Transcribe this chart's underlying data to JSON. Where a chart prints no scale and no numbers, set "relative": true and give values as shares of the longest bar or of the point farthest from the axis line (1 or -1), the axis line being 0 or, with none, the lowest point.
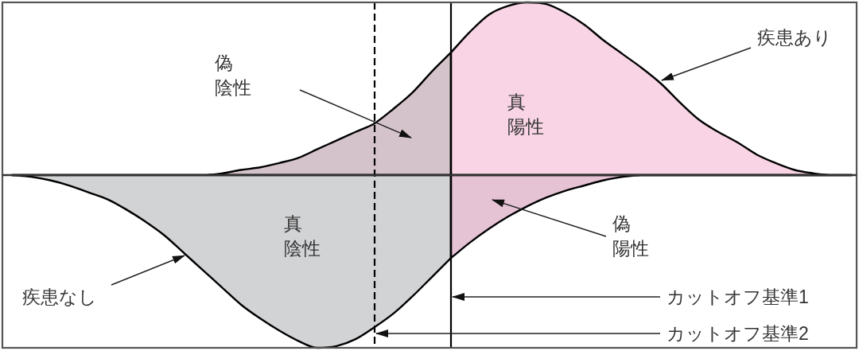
{
  "chart_data": {
    "type": "area",
    "relative": true,
    "categories": [
      null,
      null,
      null,
      null,
      null,
      null,
      null,
      null,
      null,
      null,
      null,
      null,
      null,
      null,
      null,
      null,
      null,
      null,
      null,
      null,
      null,
      null,
      null,
      null,
      null,
      null,
      null,
      null,
      null,
      null,
      null,
      null,
      null,
      null,
      null,
      null,
      null,
      null,
      null,
      null,
      null,
      null,
      null,
      null,
      null
    ],
    "series": [
      {
        "color": "#d5c3cb",
        "values": [
          0,
          0,
          0,
          0,
          0,
          0,
          0,
          0,
          0,
          0,
          0,
          0.01,
          0.03,
          0.045,
          0.07,
          0.1,
          0.15,
          0.2,
          0.25,
          0.3,
          0.385,
          0.48,
          0.6,
          0.71,
          null,
          null,
          null,
          null,
          null,
          null,
          null,
          null,
          null,
          null,
          null,
          null,
          null,
          null,
          null,
          null,
          null,
          null,
          null,
          null,
          null
        ]
      },
      {
        "color": "#f8d4e4",
        "values": [
          null,
          null,
          null,
          null,
          null,
          null,
          null,
          null,
          null,
          null,
          null,
          null,
          null,
          null,
          null,
          null,
          null,
          null,
          null,
          null,
          null,
          null,
          null,
          0.71,
          0.83,
          0.93,
          0.98,
          1,
          0.99,
          0.94,
          0.87,
          0.78,
          0.7,
          0.62,
          0.53,
          0.42,
          0.32,
          0.25,
          0.19,
          0.12,
          0.07,
          0.03,
          0.01,
          0,
          0
        ]
      },
      {
        "color": "#d2d3d5",
        "values": [
          0,
          -0.01,
          -0.03,
          -0.06,
          -0.1,
          -0.14,
          -0.2,
          -0.27,
          -0.35,
          -0.45,
          -0.55,
          -0.65,
          -0.75,
          -0.83,
          -0.9,
          -0.96,
          -1,
          -0.99,
          -0.95,
          -0.88,
          -0.8,
          -0.7,
          -0.59,
          -0.48,
          null,
          null,
          null,
          null,
          null,
          null,
          null,
          null,
          null,
          null,
          null,
          null,
          null,
          null,
          null,
          null,
          null,
          null,
          null,
          null,
          null
        ]
      },
      {
        "color": "#e6c2d5",
        "values": [
          null,
          null,
          null,
          null,
          null,
          null,
          null,
          null,
          null,
          null,
          null,
          null,
          null,
          null,
          null,
          null,
          null,
          null,
          null,
          null,
          null,
          null,
          null,
          -0.48,
          -0.39,
          -0.31,
          -0.24,
          -0.18,
          -0.13,
          -0.09,
          -0.06,
          -0.03,
          -0.01,
          0,
          0,
          0,
          0,
          0,
          0,
          0,
          0,
          0,
          0,
          0,
          0
        ]
      }
    ],
    "annotations": [
      "偽陰性",
      "真陽性",
      "疾患あり",
      "真陰性",
      "偽陽性",
      "疾患なし",
      "カットオフ基準1",
      "カットオフ基準2"
    ]
  }
}
